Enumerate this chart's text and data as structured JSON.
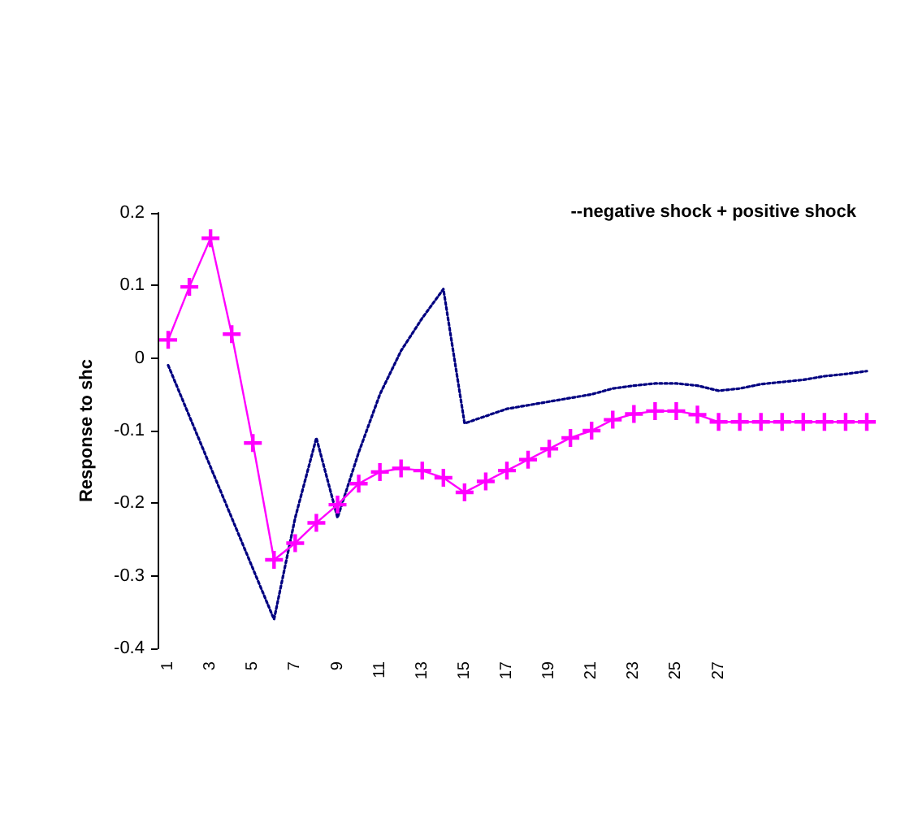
{
  "chart_data": {
    "type": "line",
    "ylabel": "Response to shc",
    "annotations": [
      "--negative shock + positive shock"
    ],
    "categories": [
      "1",
      null,
      "3",
      null,
      "5",
      null,
      "7",
      null,
      "9",
      null,
      "11",
      null,
      "13",
      null,
      "15",
      null,
      "17",
      null,
      "19",
      null,
      "21",
      null,
      "23",
      null,
      "25",
      null,
      "27",
      null,
      null,
      null,
      null,
      null,
      null,
      null
    ],
    "ylim": [
      -0.4,
      0.2
    ],
    "yticks": [
      -0.4,
      -0.3,
      -0.2,
      -0.1,
      0,
      0.1,
      0.2
    ],
    "grid": false,
    "series": [
      {
        "color": "#000080",
        "line_style": "dotted",
        "marker": "none",
        "values": [
          -0.01,
          -0.08,
          -0.15,
          -0.22,
          -0.29,
          -0.36,
          -0.22,
          -0.11,
          -0.22,
          -0.13,
          -0.05,
          0.01,
          0.055,
          0.095,
          -0.09,
          -0.08,
          -0.07,
          -0.065,
          -0.06,
          -0.055,
          -0.05,
          -0.042,
          -0.038,
          -0.035,
          -0.035,
          -0.038,
          -0.045,
          -0.042,
          -0.036,
          -0.033,
          -0.03,
          -0.025,
          -0.022,
          -0.018
        ]
      },
      {
        "color": "#ff00ff",
        "line_style": "solid",
        "marker": "cross",
        "values": [
          0.025,
          0.098,
          0.165,
          0.033,
          -0.117,
          -0.278,
          -0.255,
          -0.227,
          -0.202,
          -0.173,
          -0.157,
          -0.152,
          -0.155,
          -0.165,
          -0.185,
          -0.17,
          -0.155,
          -0.14,
          -0.125,
          -0.11,
          -0.1,
          -0.085,
          -0.077,
          -0.073,
          -0.073,
          -0.078,
          -0.088,
          -0.088,
          -0.088,
          -0.088,
          -0.088,
          -0.088,
          -0.088,
          -0.088
        ]
      }
    ]
  }
}
